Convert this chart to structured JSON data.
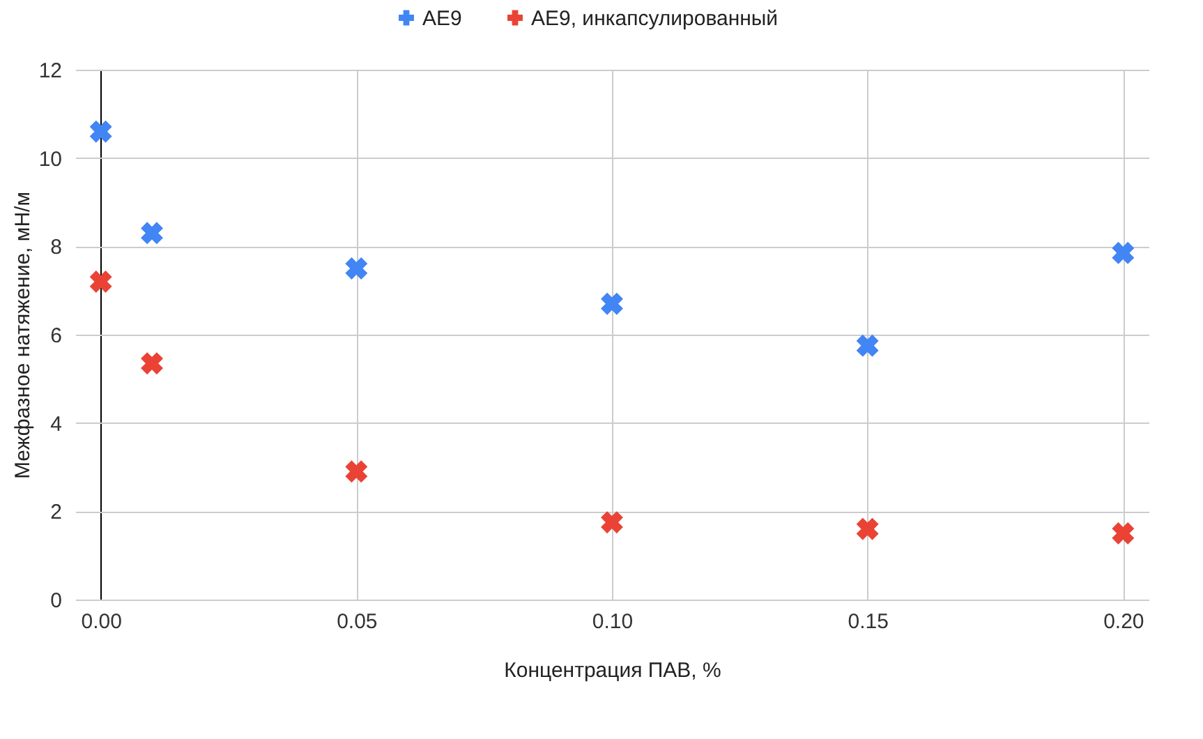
{
  "chart_data": {
    "type": "scatter",
    "xlabel": "Концентрация ПАВ, %",
    "ylabel": "Межфазное натяжение, мН/м",
    "x": [
      0,
      0.01,
      0.05,
      0.1,
      0.15,
      0.2
    ],
    "series": [
      {
        "name": "AE9",
        "color": "#4285f4",
        "values": [
          10.6,
          8.3,
          7.5,
          6.7,
          5.75,
          7.85
        ]
      },
      {
        "name": "AE9, инкапсулированный",
        "color": "#ea4335",
        "values": [
          7.2,
          5.35,
          2.9,
          1.75,
          1.6,
          1.5
        ]
      }
    ],
    "xlim": [
      -0.005,
      0.205
    ],
    "xticks": [
      {
        "value": 0,
        "label": "0.00"
      },
      {
        "value": 0.05,
        "label": "0.05"
      },
      {
        "value": 0.1,
        "label": "0.10"
      },
      {
        "value": 0.15,
        "label": "0.15"
      },
      {
        "value": 0.2,
        "label": "0.20"
      }
    ],
    "ylim": [
      0,
      12
    ],
    "yticks": [
      0,
      2,
      4,
      6,
      8,
      10,
      12
    ],
    "grid": true,
    "legend": "top",
    "marker": "cross"
  }
}
